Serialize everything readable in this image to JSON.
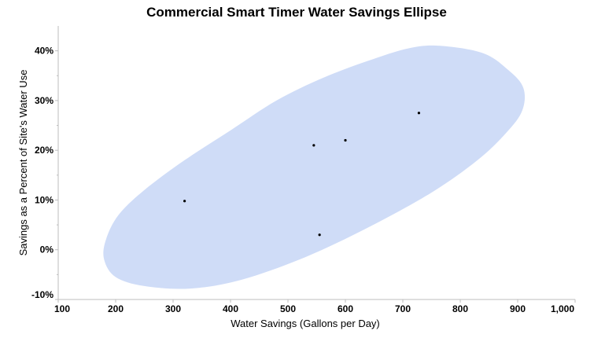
{
  "chart_data": {
    "type": "scatter",
    "title": "Commercial Smart Timer Water Savings Ellipse",
    "xlabel": "Water Savings (Gallons per Day)",
    "ylabel": "Savings as a Percent of Site's Water Use",
    "xlim": [
      100,
      1000
    ],
    "ylim": [
      -10,
      45
    ],
    "x_ticks": [
      100,
      200,
      300,
      400,
      500,
      600,
      700,
      800,
      900,
      1000
    ],
    "x_tick_labels": [
      "100",
      "200",
      "300",
      "400",
      "500",
      "600",
      "700",
      "800",
      "900",
      "1,000"
    ],
    "y_ticks": [
      -10,
      0,
      10,
      20,
      30,
      40
    ],
    "y_tick_labels": [
      "-10%",
      "0%",
      "10%",
      "20%",
      "30%",
      "40%"
    ],
    "grid": false,
    "series": [
      {
        "points": [
          {
            "x": 320,
            "y": 9.8
          },
          {
            "x": 545,
            "y": 21.0
          },
          {
            "x": 600,
            "y": 22.0
          },
          {
            "x": 555,
            "y": 3.0
          },
          {
            "x": 728,
            "y": 27.5
          }
        ]
      }
    ],
    "ellipse": {
      "color": "#cfdcf7",
      "outline": [
        [
          765,
          41.0
        ],
        [
          840,
          39.5
        ],
        [
          885,
          36.0
        ],
        [
          910,
          32.5
        ],
        [
          908,
          28.0
        ],
        [
          880,
          23.5
        ],
        [
          830,
          18.0
        ],
        [
          750,
          11.5
        ],
        [
          640,
          4.5
        ],
        [
          530,
          -1.5
        ],
        [
          420,
          -6.0
        ],
        [
          330,
          -7.8
        ],
        [
          250,
          -7.3
        ],
        [
          200,
          -5.5
        ],
        [
          180,
          -2.0
        ],
        [
          183,
          2.0
        ],
        [
          205,
          7.0
        ],
        [
          250,
          12.0
        ],
        [
          320,
          18.0
        ],
        [
          400,
          24.0
        ],
        [
          480,
          30.0
        ],
        [
          560,
          34.5
        ],
        [
          640,
          38.0
        ],
        [
          710,
          40.5
        ]
      ]
    },
    "point_color": "#000000",
    "axis_color": "#bdbdbd"
  }
}
